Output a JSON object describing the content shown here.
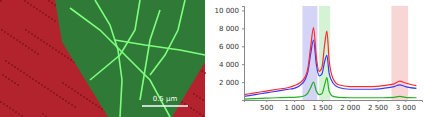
{
  "chart_data": {
    "type": "line",
    "x": [
      100,
      300,
      500,
      700,
      900,
      1000,
      1100,
      1200,
      1250,
      1300,
      1350,
      1400,
      1450,
      1500,
      1550,
      1590,
      1630,
      1700,
      1800,
      2000,
      2200,
      2400,
      2600,
      2800,
      2900,
      3000,
      3200
    ],
    "series": [
      {
        "color": "#3a3aff",
        "values": [
          400,
          600,
          800,
          1000,
          1200,
          1300,
          1600,
          2300,
          3200,
          5200,
          6700,
          4000,
          2700,
          2900,
          4300,
          5000,
          3000,
          1900,
          1400,
          1200,
          1200,
          1200,
          1300,
          1500,
          1700,
          1500,
          1300
        ]
      },
      {
        "color": "#22b022",
        "values": [
          100,
          150,
          200,
          250,
          300,
          300,
          350,
          500,
          800,
          1400,
          2000,
          1000,
          600,
          700,
          1700,
          2500,
          1000,
          400,
          300,
          250,
          250,
          250,
          250,
          300,
          400,
          300,
          250
        ]
      },
      {
        "color": "#ff2a2a",
        "values": [
          600,
          800,
          1000,
          1200,
          1400,
          1600,
          1900,
          2600,
          3600,
          6000,
          8100,
          4800,
          3200,
          3600,
          6200,
          7700,
          4500,
          2400,
          1700,
          1500,
          1500,
          1500,
          1600,
          1800,
          2100,
          1900,
          1600
        ]
      }
    ],
    "bands": [
      {
        "from": 1150,
        "to": 1420,
        "color": "#c9c9f5"
      },
      {
        "from": 1450,
        "to": 1650,
        "color": "#c9f0c9"
      },
      {
        "from": 2750,
        "to": 3050,
        "color": "#f7cccc"
      }
    ],
    "xlim": [
      100,
      3300
    ],
    "xticks": [
      500,
      {
        "value": 1000,
        "label": "1 000"
      },
      {
        "value": 1500,
        "label": "1 500"
      },
      {
        "value": 2000,
        "label": "2 000"
      },
      {
        "value": 2500,
        "label": "2 500"
      },
      {
        "value": 3000,
        "label": "3 000"
      }
    ],
    "ylim": [
      0,
      10500
    ],
    "yticks": [
      {
        "value": 2000,
        "label": "2 000"
      },
      {
        "value": 4000,
        "label": "4 000"
      },
      {
        "value": 6000,
        "label": "6 000"
      },
      {
        "value": 8000,
        "label": "8 000"
      },
      {
        "value": 10000,
        "label": "10 000"
      }
    ],
    "grid": false
  },
  "map": {
    "scale_bar": "0.5 µm"
  }
}
